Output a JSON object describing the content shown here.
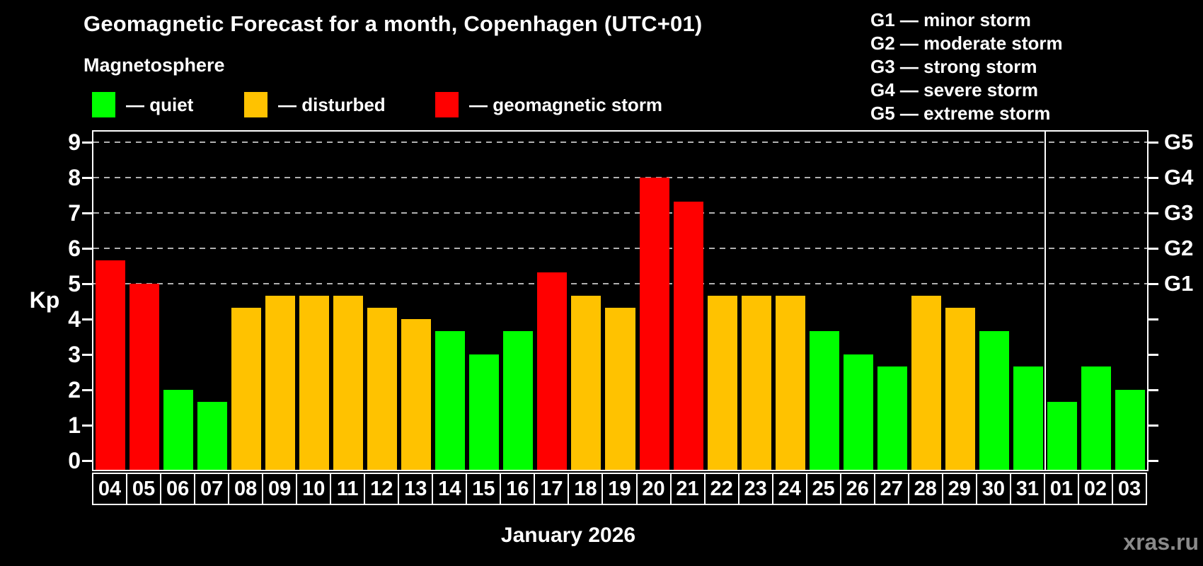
{
  "chart_data": {
    "type": "bar",
    "title": "Geomagnetic Forecast for a month, Copenhagen (UTC+01)",
    "subtitle": "Magnetosphere",
    "xlabel": "January 2026",
    "ylabel": "Kp",
    "ylim": [
      0,
      9.33
    ],
    "yticks": [
      0,
      1,
      2,
      3,
      4,
      5,
      6,
      7,
      8,
      9
    ],
    "grid_levels": [
      5,
      6,
      7,
      8,
      9
    ],
    "right_axis": [
      {
        "kp": 9,
        "label": "G5"
      },
      {
        "kp": 8,
        "label": "G4"
      },
      {
        "kp": 7,
        "label": "G3"
      },
      {
        "kp": 6,
        "label": "G2"
      },
      {
        "kp": 5,
        "label": "G1"
      }
    ],
    "categories": [
      "04",
      "05",
      "06",
      "07",
      "08",
      "09",
      "10",
      "11",
      "12",
      "13",
      "14",
      "15",
      "16",
      "17",
      "18",
      "19",
      "20",
      "21",
      "22",
      "23",
      "24",
      "25",
      "26",
      "27",
      "28",
      "29",
      "30",
      "31",
      "01",
      "02",
      "03"
    ],
    "values": [
      5.67,
      5.0,
      2.0,
      1.67,
      4.33,
      4.67,
      4.67,
      4.67,
      4.33,
      4.0,
      3.67,
      3.0,
      3.67,
      5.33,
      4.67,
      4.33,
      8.0,
      7.33,
      4.67,
      4.67,
      4.67,
      3.67,
      3.0,
      2.67,
      4.67,
      4.33,
      3.67,
      2.67,
      1.67,
      2.67,
      2.0
    ],
    "statuses": [
      "storm",
      "storm",
      "quiet",
      "quiet",
      "disturbed",
      "disturbed",
      "disturbed",
      "disturbed",
      "disturbed",
      "disturbed",
      "quiet",
      "quiet",
      "quiet",
      "storm",
      "disturbed",
      "disturbed",
      "storm",
      "storm",
      "disturbed",
      "disturbed",
      "disturbed",
      "quiet",
      "quiet",
      "quiet",
      "disturbed",
      "disturbed",
      "quiet",
      "quiet",
      "quiet",
      "quiet",
      "quiet"
    ],
    "month_separator_after_index": 27,
    "legend": {
      "items": [
        {
          "label": "— quiet",
          "status": "quiet"
        },
        {
          "label": "— disturbed",
          "status": "disturbed"
        },
        {
          "label": "— geomagnetic storm",
          "status": "storm"
        }
      ]
    },
    "g_legend": [
      "G1 — minor storm",
      "G2 — moderate storm",
      "G3 — strong storm",
      "G4 — severe storm",
      "G5 — extreme storm"
    ],
    "colors": {
      "quiet": "#00ff00",
      "disturbed": "#ffc200",
      "storm": "#ff0000",
      "background": "#000000",
      "text": "#ffffff",
      "grid": "#b0b0b0",
      "watermark": "#8a8a8a"
    },
    "watermark": "xras.ru"
  }
}
